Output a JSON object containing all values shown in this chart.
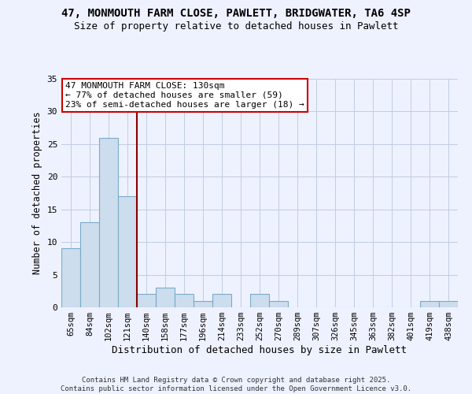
{
  "title_line1": "47, MONMOUTH FARM CLOSE, PAWLETT, BRIDGWATER, TA6 4SP",
  "title_line2": "Size of property relative to detached houses in Pawlett",
  "xlabel": "Distribution of detached houses by size in Pawlett",
  "ylabel": "Number of detached properties",
  "bar_labels": [
    "65sqm",
    "84sqm",
    "102sqm",
    "121sqm",
    "140sqm",
    "158sqm",
    "177sqm",
    "196sqm",
    "214sqm",
    "233sqm",
    "252sqm",
    "270sqm",
    "289sqm",
    "307sqm",
    "326sqm",
    "345sqm",
    "363sqm",
    "382sqm",
    "401sqm",
    "419sqm",
    "438sqm"
  ],
  "bar_values": [
    9,
    13,
    26,
    17,
    2,
    3,
    2,
    1,
    2,
    0,
    2,
    1,
    0,
    0,
    0,
    0,
    0,
    0,
    0,
    1,
    1
  ],
  "bar_color": "#ccdded",
  "bar_edge_color": "#7aaac8",
  "vline_x": 3.5,
  "vline_color": "#880000",
  "ylim": [
    0,
    35
  ],
  "yticks": [
    0,
    5,
    10,
    15,
    20,
    25,
    30,
    35
  ],
  "annotation_title": "47 MONMOUTH FARM CLOSE: 130sqm",
  "annotation_line2": "← 77% of detached houses are smaller (59)",
  "annotation_line3": "23% of semi-detached houses are larger (18) →",
  "annotation_box_color": "#ffffff",
  "annotation_box_edge": "#cc0000",
  "background_color": "#eef2ff",
  "grid_color": "#c0cce0",
  "footer_line1": "Contains HM Land Registry data © Crown copyright and database right 2025.",
  "footer_line2": "Contains public sector information licensed under the Open Government Licence v3.0."
}
